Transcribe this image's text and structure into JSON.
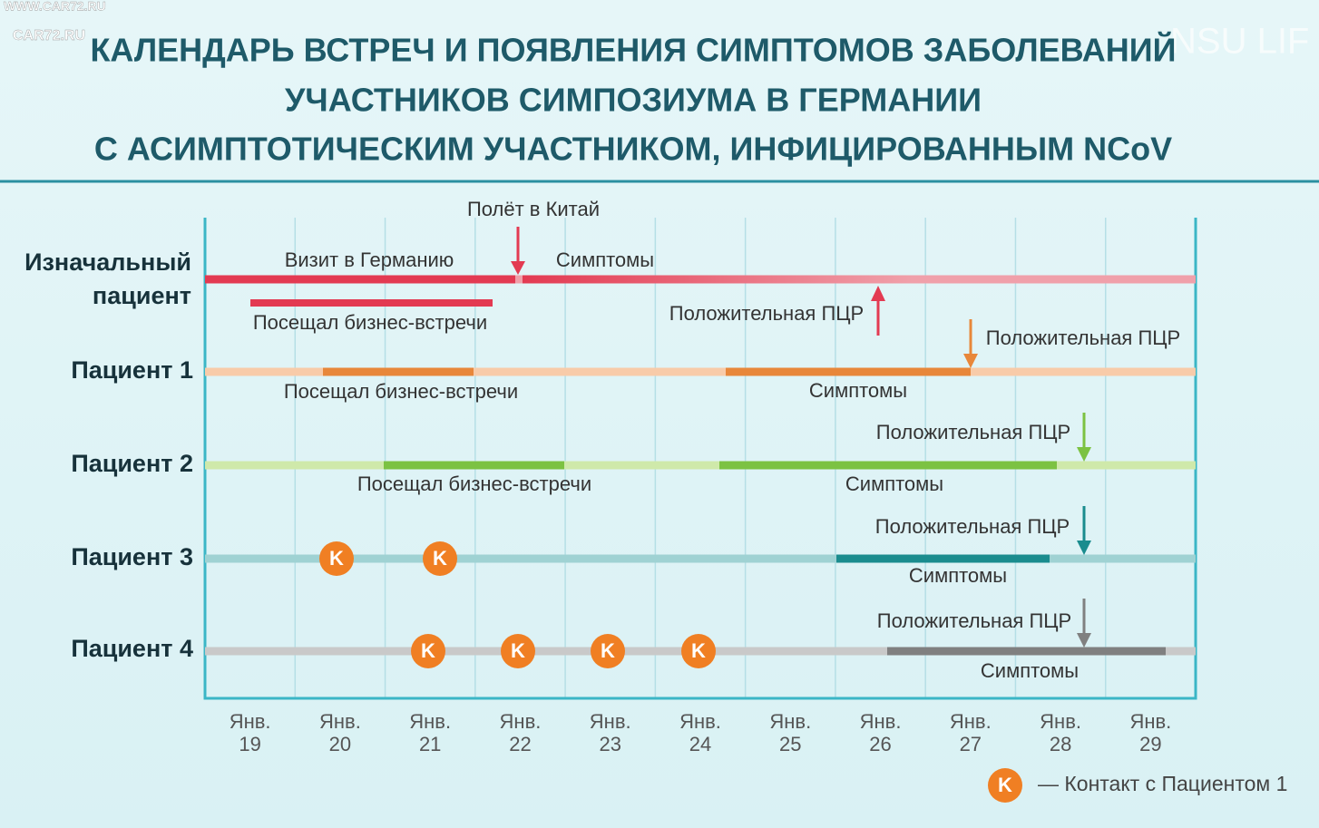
{
  "watermarks": [
    "WWW.CAR72.RU",
    "CAR72.RU",
    "NSU LIF"
  ],
  "title": [
    "КАЛЕНДАРЬ ВСТРЕЧ И ПОЯВЛЕНИЯ СИМПТОМОВ ЗАБОЛЕВАНИЙ",
    "УЧАСТНИКОВ СИМПОЗИУМА В ГЕРМАНИИ",
    "С АСИМПТОТИЧЕСКИМ УЧАСТНИКОМ, ИНФИЦИРОВАННЫМ NCoV"
  ],
  "rows": [
    [
      "Изначальный",
      "пациент"
    ],
    [
      "Пациент 1"
    ],
    [
      "Пациент 2"
    ],
    [
      "Пациент 3"
    ],
    [
      "Пациент 4"
    ]
  ],
  "annotations": [
    "Полёт в Китай",
    "Визит в Германию",
    "Симптомы",
    "Посещал бизнес-встречи",
    "Положительная ПЦР",
    "Положительная ПЦР",
    "Посещал бизнес-встречи",
    "Симптомы",
    "Положительная ПЦР",
    "Посещал бизнес-встречи",
    "Симптомы",
    "Положительная ПЦР",
    "Симптомы",
    "Положительная ПЦР",
    "Симптомы"
  ],
  "days": [
    [
      "Янв.",
      "19"
    ],
    [
      "Янв.",
      "20"
    ],
    [
      "Янв.",
      "21"
    ],
    [
      "Янв.",
      "22"
    ],
    [
      "Янв.",
      "23"
    ],
    [
      "Янв.",
      "24"
    ],
    [
      "Янв.",
      "25"
    ],
    [
      "Янв.",
      "26"
    ],
    [
      "Янв.",
      "27"
    ],
    [
      "Янв.",
      "28"
    ],
    [
      "Янв.",
      "29"
    ]
  ],
  "contact_marker": "K",
  "legend": "— Контакт с Пациентом 1"
}
